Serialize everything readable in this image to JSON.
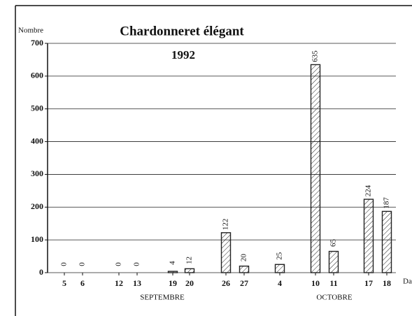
{
  "chart_data": {
    "type": "bar",
    "title": "Chardonneret élégant",
    "subtitle": "1992",
    "y_label": "Nombre",
    "x_label": "Da",
    "categories": [
      "5",
      "6",
      "12",
      "13",
      "19",
      "20",
      "26",
      "27",
      "4",
      "10",
      "11",
      "17",
      "18"
    ],
    "values": [
      0,
      0,
      0,
      0,
      4,
      12,
      122,
      20,
      25,
      635,
      65,
      224,
      187
    ],
    "month_groups": [
      "SEPTEMBRE",
      "OCTOBRE"
    ],
    "color": "#222222",
    "ylim": [
      0,
      700
    ],
    "yticks": [
      0,
      100,
      200,
      300,
      400,
      500,
      600,
      700
    ],
    "grid": true
  }
}
